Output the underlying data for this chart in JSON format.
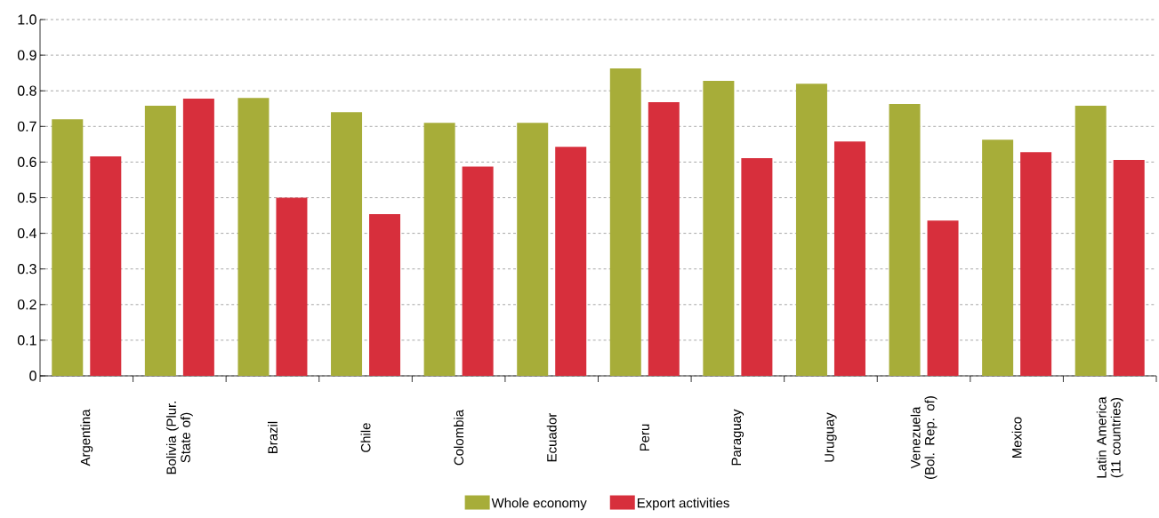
{
  "chart_data": {
    "type": "bar",
    "categories": [
      "Argentina",
      "Bolivia (Plur. State of)",
      "Brazil",
      "Chile",
      "Colombia",
      "Ecuador",
      "Peru",
      "Paraguay",
      "Uruguay",
      "Venezuela (Bol. Rep. of)",
      "Mexico",
      "Latin America (11 countries)"
    ],
    "series": [
      {
        "name": "Whole economy",
        "color": "#a7ad39",
        "values": [
          0.72,
          0.758,
          0.78,
          0.74,
          0.71,
          0.71,
          0.863,
          0.828,
          0.82,
          0.763,
          0.663,
          0.758
        ]
      },
      {
        "name": "Export activities",
        "color": "#d72f3c",
        "values": [
          0.616,
          0.778,
          0.5,
          0.454,
          0.587,
          0.643,
          0.768,
          0.611,
          0.658,
          0.436,
          0.628,
          0.606
        ]
      }
    ],
    "ylim": [
      0,
      1.0
    ],
    "yticks": [
      0,
      {
        "value": 0.1,
        "label": "0.1"
      },
      {
        "value": 0.2,
        "label": "0.2"
      },
      {
        "value": 0.3,
        "label": "0.3"
      },
      {
        "value": 0.4,
        "label": "0.4"
      },
      {
        "value": 0.5,
        "label": "0.5"
      },
      {
        "value": 0.6,
        "label": "0.6"
      },
      {
        "value": 0.7,
        "label": "0.7"
      },
      {
        "value": 0.8,
        "label": "0.8"
      },
      {
        "value": 0.9,
        "label": "0.9"
      },
      {
        "value": 1.0,
        "label": "1.0"
      }
    ],
    "grid": "y",
    "legend": "bottom"
  }
}
